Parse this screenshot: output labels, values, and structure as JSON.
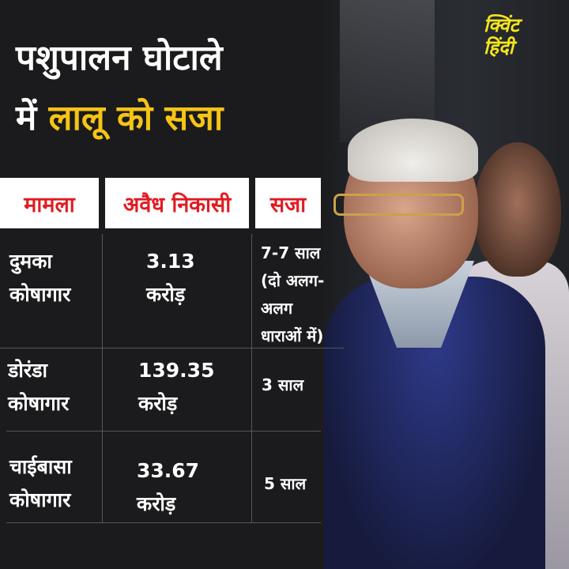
{
  "title": {
    "line1": "पशुपालन घोटाले",
    "line2_white": "में",
    "line2_yellow": "लालू को सजा"
  },
  "logo": {
    "line1": "क्विंट",
    "line2": "हिंदी"
  },
  "colors": {
    "accent_yellow": "#f6c414",
    "header_red": "#e11b22",
    "background": "#1b1b1d"
  },
  "table": {
    "headers": [
      "मामला",
      "अवैध निकासी",
      "सजा"
    ],
    "rows": [
      {
        "case": [
          "दुमका",
          "कोषागार"
        ],
        "amount": [
          "3.13",
          "करोड़"
        ],
        "sentence": [
          "7-7 साल",
          "(दो अलग-",
          "अलग",
          "धाराओं में)"
        ]
      },
      {
        "case": [
          "डोरंडा",
          "कोषागार"
        ],
        "amount": [
          "139.35",
          "करोड़"
        ],
        "sentence": [
          "3 साल"
        ]
      },
      {
        "case": [
          "चाईबासा",
          "कोषागार"
        ],
        "amount": [
          "33.67",
          "करोड़"
        ],
        "sentence": [
          "5 साल"
        ]
      }
    ]
  }
}
